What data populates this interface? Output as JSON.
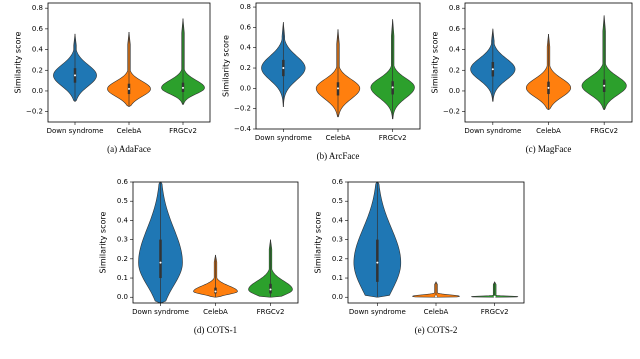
{
  "chart_data": [
    {
      "type": "violin",
      "ylabel": "Similarity score",
      "caption": "(a)  AdaFace",
      "categories": [
        "Down syndrome",
        "CelebA",
        "FRGCv2"
      ],
      "colors": [
        "#1f77b4",
        "#ff7f0e",
        "#2ca02c"
      ],
      "violins": [
        {
          "min": -0.1,
          "q1": 0.08,
          "median": 0.15,
          "q3": 0.22,
          "max": 0.55
        },
        {
          "min": -0.15,
          "q1": -0.03,
          "median": 0.02,
          "q3": 0.07,
          "max": 0.57
        },
        {
          "min": -0.13,
          "q1": -0.01,
          "median": 0.03,
          "q3": 0.08,
          "max": 0.7
        }
      ],
      "ylim": [
        -0.3,
        0.85
      ],
      "yticks": [
        {
          "value": -0.2,
          "label": "−0.2"
        },
        {
          "value": 0,
          "label": "0.0"
        },
        0.2,
        0.4,
        0.6,
        0.8
      ]
    },
    {
      "type": "violin",
      "ylabel": "Similarity score",
      "caption": "(b)  ArcFace",
      "categories": [
        "Down syndrome",
        "CelebA",
        "FRGCv2"
      ],
      "colors": [
        "#1f77b4",
        "#ff7f0e",
        "#2ca02c"
      ],
      "violins": [
        {
          "min": -0.18,
          "q1": 0.12,
          "median": 0.2,
          "q3": 0.28,
          "max": 0.65
        },
        {
          "min": -0.28,
          "q1": -0.07,
          "median": 0,
          "q3": 0.06,
          "max": 0.58
        },
        {
          "min": -0.3,
          "q1": -0.06,
          "median": 0.01,
          "q3": 0.07,
          "max": 0.68
        }
      ],
      "ylim": [
        -0.4,
        0.84
      ],
      "yticks": [
        {
          "value": -0.4,
          "label": "−0.4"
        },
        {
          "value": -0.2,
          "label": "−0.2"
        },
        {
          "value": 0,
          "label": "0.0"
        },
        0.2,
        0.4,
        0.6,
        0.8
      ]
    },
    {
      "type": "violin",
      "ylabel": "Similarity score",
      "caption": "(c)  MagFace",
      "categories": [
        "Down syndrome",
        "CelebA",
        "FRGCv2"
      ],
      "colors": [
        "#1f77b4",
        "#ff7f0e",
        "#2ca02c"
      ],
      "violins": [
        {
          "min": -0.1,
          "q1": 0.14,
          "median": 0.21,
          "q3": 0.28,
          "max": 0.6
        },
        {
          "min": -0.18,
          "q1": -0.03,
          "median": 0.03,
          "q3": 0.09,
          "max": 0.55
        },
        {
          "min": -0.18,
          "q1": -0.01,
          "median": 0.05,
          "q3": 0.11,
          "max": 0.73
        }
      ],
      "ylim": [
        -0.3,
        0.85
      ],
      "yticks": [
        {
          "value": -0.2,
          "label": "−0.2"
        },
        {
          "value": 0,
          "label": "0.0"
        },
        0.2,
        0.4,
        0.6,
        0.8
      ]
    },
    {
      "type": "violin",
      "ylabel": "Similarity score",
      "caption": "(d)  COTS-1",
      "categories": [
        "Down syndrome",
        "CelebA",
        "FRGCv2"
      ],
      "colors": [
        "#1f77b4",
        "#ff7f0e",
        "#2ca02c"
      ],
      "violins": [
        {
          "min": -0.03,
          "q1": 0.1,
          "median": 0.18,
          "q3": 0.3,
          "max": 0.6
        },
        {
          "min": 0,
          "q1": 0.02,
          "median": 0.03,
          "q3": 0.05,
          "max": 0.22
        },
        {
          "min": 0,
          "q1": 0.02,
          "median": 0.04,
          "q3": 0.07,
          "max": 0.3
        }
      ],
      "ylim": [
        -0.03,
        0.6
      ],
      "yticks": [
        {
          "value": 0,
          "label": "0.0"
        },
        0.1,
        0.2,
        0.3,
        0.4,
        0.5,
        0.6
      ]
    },
    {
      "type": "violin",
      "ylabel": "Similarity score",
      "caption": "(e)  COTS-2",
      "categories": [
        "Down syndrome",
        "CelebA",
        "FRGCv2"
      ],
      "colors": [
        "#1f77b4",
        "#ff7f0e",
        "#2ca02c"
      ],
      "violins": [
        {
          "min": 0,
          "q1": 0.08,
          "median": 0.18,
          "q3": 0.3,
          "max": 0.6
        },
        {
          "min": 0,
          "q1": 0,
          "median": 0.005,
          "q3": 0.01,
          "max": 0.08
        },
        {
          "min": 0,
          "q1": 0,
          "median": 0.003,
          "q3": 0.005,
          "max": 0.08
        }
      ],
      "ylim": [
        -0.03,
        0.6
      ],
      "yticks": [
        {
          "value": 0,
          "label": "0.0"
        },
        0.1,
        0.2,
        0.3,
        0.4,
        0.5,
        0.6
      ]
    }
  ]
}
